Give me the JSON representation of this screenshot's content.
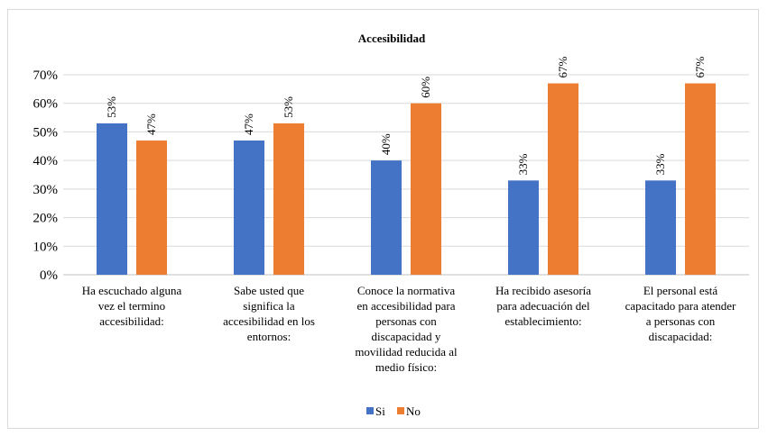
{
  "chart_data": {
    "type": "bar",
    "title": "Accesibilidad",
    "xlabel": "",
    "ylabel": "",
    "ylim": [
      0,
      70
    ],
    "y_tick_labels": [
      "0%",
      "10%",
      "20%",
      "30%",
      "40%",
      "50%",
      "60%",
      "70%"
    ],
    "grid": true,
    "legend_position": "bottom",
    "categories": [
      [
        "Ha escuchado alguna",
        "vez el termino",
        "accesibilidad:"
      ],
      [
        "Sabe usted que",
        "significa la",
        "accesibilidad en los",
        "entornos:"
      ],
      [
        "Conoce la normativa",
        "en accesibilidad para",
        "personas con",
        "discapacidad y",
        "movilidad reducida al",
        "medio físico:"
      ],
      [
        "Ha recibido asesoría",
        "para adecuación del",
        "establecimiento:"
      ],
      [
        "El personal está",
        "capacitado para atender",
        "a personas con",
        "discapacidad:"
      ]
    ],
    "series": [
      {
        "name": "Si",
        "color": "#4472c4",
        "values": [
          53,
          47,
          40,
          33,
          33
        ],
        "labels": [
          "53%",
          "47%",
          "40%",
          "33%",
          "33%"
        ]
      },
      {
        "name": "No",
        "color": "#ed7d31",
        "values": [
          47,
          53,
          60,
          67,
          67
        ],
        "labels": [
          "47%",
          "53%",
          "60%",
          "67%",
          "67%"
        ]
      }
    ]
  }
}
